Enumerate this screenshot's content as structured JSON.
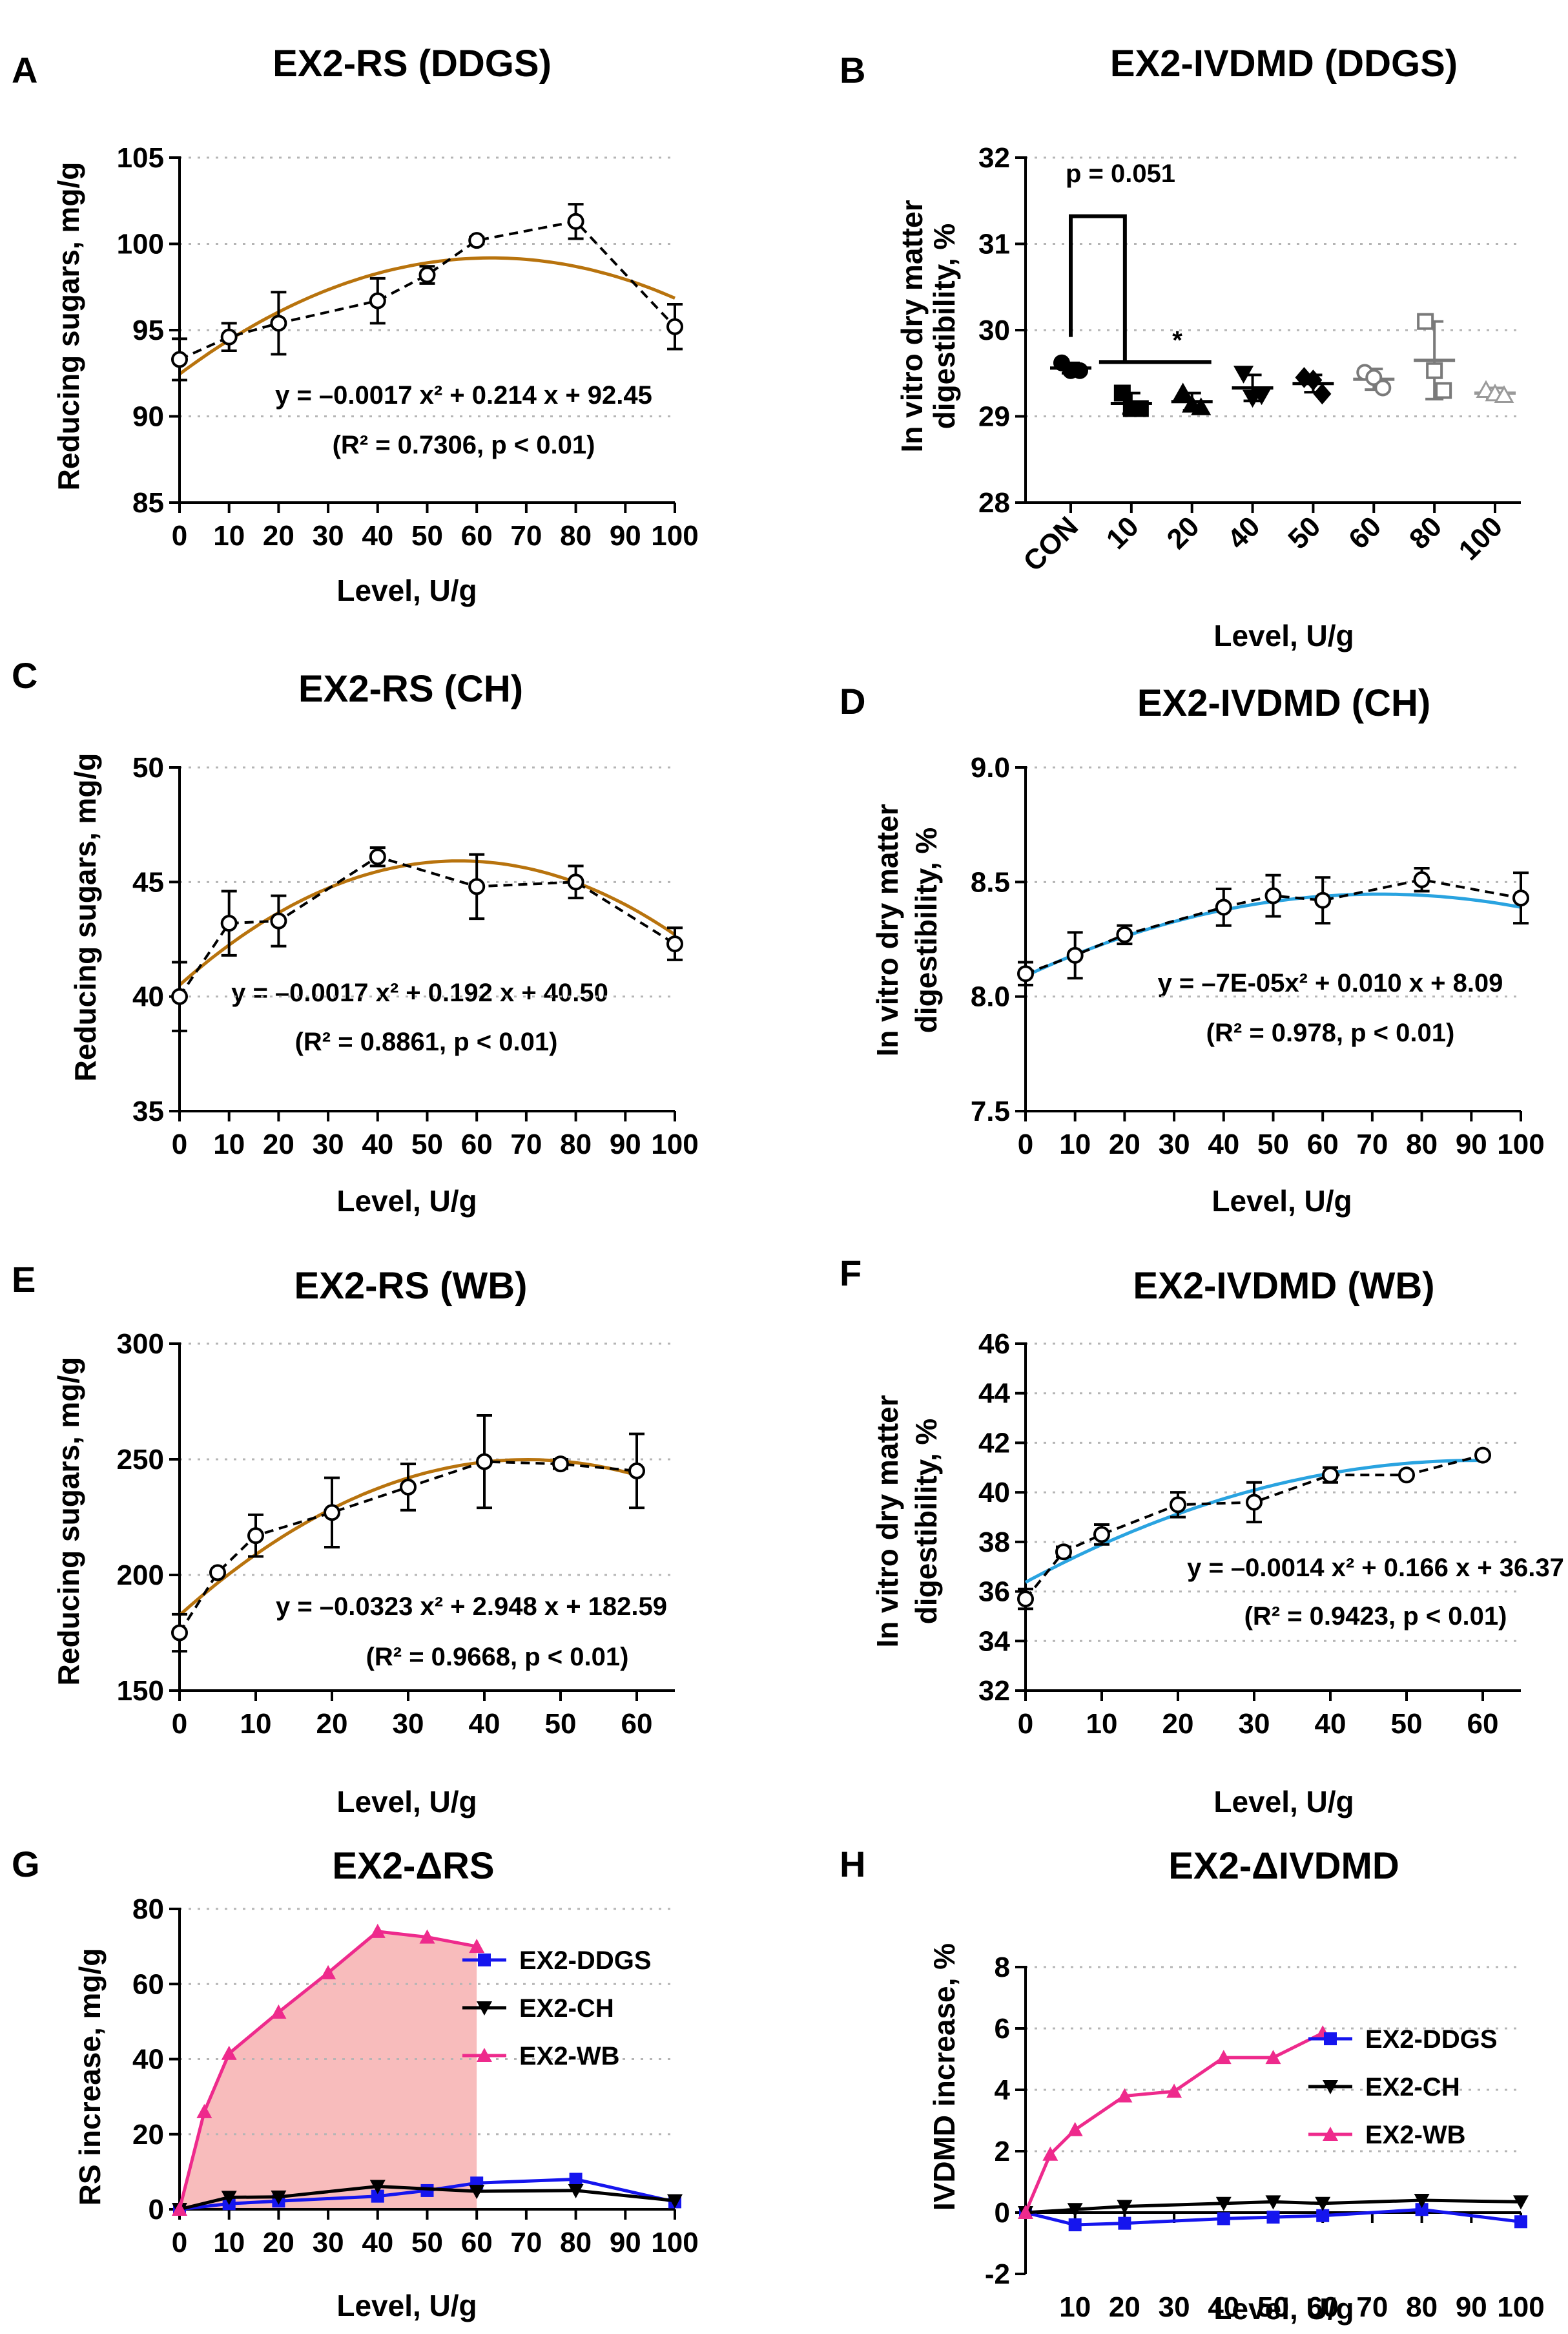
{
  "figure": {
    "panels": {
      "A": {
        "letter": "A",
        "title": "EX2-RS (DDGS)",
        "ylabel": "Reducing sugars, mg/g",
        "xlabel": "Level, U/g",
        "eq1": "y = –0.0017 x² + 0.214 x + 92.45",
        "eq2": "(R² = 0.7306, p < 0.01)"
      },
      "B": {
        "letter": "B",
        "title": "EX2-IVDMD (DDGS)",
        "ylabel1": "In vitro dry matter",
        "ylabel2": "digestibility, %",
        "xlabel": "Level, U/g",
        "pvalue": "p = 0.051",
        "star": "*"
      },
      "C": {
        "letter": "C",
        "title": "EX2-RS (CH)",
        "ylabel": "Reducing sugars, mg/g",
        "xlabel": "Level, U/g",
        "eq1": "y = –0.0017 x² + 0.192 x + 40.50",
        "eq2": "(R² = 0.8861, p < 0.01)"
      },
      "D": {
        "letter": "D",
        "title": "EX2-IVDMD (CH)",
        "ylabel1": "In vitro dry matter",
        "ylabel2": "digestibility, %",
        "xlabel": "Level, U/g",
        "eq1": "y = –7E-05x² + 0.010 x + 8.09",
        "eq2": "(R² = 0.978, p < 0.01)"
      },
      "E": {
        "letter": "E",
        "title": "EX2-RS (WB)",
        "ylabel": "Reducing sugars, mg/g",
        "xlabel": "Level, U/g",
        "eq1": "y = –0.0323 x² + 2.948 x + 182.59",
        "eq2": "(R² = 0.9668, p < 0.01)"
      },
      "F": {
        "letter": "F",
        "title": "EX2-IVDMD (WB)",
        "ylabel1": "In vitro dry matter",
        "ylabel2": "digestibility, %",
        "xlabel": "Level, U/g",
        "eq1": "y = –0.0014 x² + 0.166 x + 36.37",
        "eq2": "(R² = 0.9423, p < 0.01)"
      },
      "G": {
        "letter": "G",
        "title": "EX2-ΔRS",
        "ylabel": "RS increase, mg/g",
        "xlabel": "Level, U/g"
      },
      "H": {
        "letter": "H",
        "title": "EX2-ΔIVDMD",
        "ylabel": "IVDMD increase, %",
        "xlabel": "Level, U/g"
      }
    }
  },
  "colors": {
    "fit_brown": "#b8730d",
    "fit_blue": "#29a3e0",
    "ddgs": "#1515ee",
    "ch": "#000000",
    "wb": "#ee2a8c",
    "shade": "#f8bcbc"
  },
  "chart_data": [
    {
      "panel": "A",
      "type": "line",
      "title": "EX2-RS (DDGS)",
      "xlabel": "Level, U/g",
      "ylabel": "Reducing sugars, mg/g",
      "xlim": [
        0,
        100
      ],
      "ylim": [
        85,
        105
      ],
      "yticks": [
        85,
        90,
        95,
        100,
        105
      ],
      "xticks": [
        0,
        10,
        20,
        30,
        40,
        50,
        60,
        70,
        80,
        90,
        100
      ],
      "xtick_labels": [
        "0",
        "10",
        "20",
        "30",
        "40",
        "50",
        "60",
        "70",
        "80",
        "90",
        "100"
      ],
      "x": [
        0,
        10,
        20,
        40,
        50,
        60,
        80,
        100
      ],
      "y": [
        93.3,
        94.6,
        95.4,
        96.7,
        98.2,
        100.2,
        101.3,
        95.2
      ],
      "err": [
        1.2,
        0.8,
        1.8,
        1.3,
        0.5,
        0.2,
        1.0,
        1.3
      ],
      "fit": {
        "a": -0.0017,
        "b": 0.214,
        "c": 92.45
      }
    },
    {
      "panel": "B",
      "type": "scatter",
      "title": "EX2-IVDMD (DDGS)",
      "xlabel": "Level, U/g",
      "ylabel": "In vitro dry matter digestibility, %",
      "ylim": [
        28,
        32
      ],
      "yticks": [
        28,
        29,
        30,
        31,
        32
      ],
      "categories": [
        "CON",
        "10",
        "20",
        "40",
        "50",
        "60",
        "80",
        "100"
      ],
      "mean": [
        29.56,
        29.15,
        29.17,
        29.33,
        29.38,
        29.43,
        29.65,
        29.27
      ],
      "sd": [
        0.06,
        0.12,
        0.1,
        0.15,
        0.1,
        0.12,
        0.45,
        0.06
      ],
      "points": [
        [
          29.62,
          29.53,
          29.53
        ],
        [
          29.27,
          29.09,
          29.09
        ],
        [
          29.27,
          29.13,
          29.1
        ],
        [
          29.5,
          29.22,
          29.25
        ],
        [
          29.45,
          29.42,
          29.26
        ],
        [
          29.51,
          29.45,
          29.33
        ],
        [
          30.1,
          29.53,
          29.3
        ],
        [
          29.3,
          29.26,
          29.24
        ]
      ],
      "annotations": [
        "p = 0.051",
        "*"
      ]
    },
    {
      "panel": "C",
      "type": "line",
      "title": "EX2-RS (CH)",
      "xlabel": "Level, U/g",
      "ylabel": "Reducing sugars, mg/g",
      "xlim": [
        0,
        100
      ],
      "ylim": [
        35,
        50
      ],
      "yticks": [
        35,
        40,
        45,
        50
      ],
      "xticks": [
        0,
        10,
        20,
        30,
        40,
        50,
        60,
        70,
        80,
        90,
        100
      ],
      "xtick_labels": [
        "0",
        "10",
        "20",
        "30",
        "40",
        "50",
        "60",
        "70",
        "80",
        "90",
        "100"
      ],
      "x": [
        0,
        10,
        20,
        40,
        60,
        80,
        100
      ],
      "y": [
        40.0,
        43.2,
        43.3,
        46.1,
        44.8,
        45.0,
        42.3
      ],
      "err": [
        1.5,
        1.4,
        1.1,
        0.4,
        1.4,
        0.7,
        0.7
      ],
      "fit": {
        "a": -0.0017,
        "b": 0.192,
        "c": 40.5
      }
    },
    {
      "panel": "D",
      "type": "line",
      "title": "EX2-IVDMD (CH)",
      "xlabel": "Level, U/g",
      "ylabel": "In vitro dry matter digestibility, %",
      "xlim": [
        0,
        100
      ],
      "ylim": [
        7.5,
        9.0
      ],
      "yticks": [
        7.5,
        8.0,
        8.5,
        9.0
      ],
      "ytick_labels": [
        "7.5",
        "8.0",
        "8.5",
        "9.0"
      ],
      "xticks": [
        0,
        10,
        20,
        30,
        40,
        50,
        60,
        70,
        80,
        90,
        100
      ],
      "xtick_labels": [
        "0",
        "10",
        "20",
        "30",
        "40",
        "50",
        "60",
        "70",
        "80",
        "90",
        "100"
      ],
      "x": [
        0,
        10,
        20,
        40,
        50,
        60,
        80,
        100
      ],
      "y": [
        8.1,
        8.18,
        8.27,
        8.39,
        8.44,
        8.42,
        8.51,
        8.43
      ],
      "err": [
        0.05,
        0.1,
        0.04,
        0.08,
        0.09,
        0.1,
        0.05,
        0.11
      ],
      "fit": {
        "a": -7e-05,
        "b": 0.01,
        "c": 8.09
      }
    },
    {
      "panel": "E",
      "type": "line",
      "title": "EX2-RS (WB)",
      "xlabel": "Level, U/g",
      "ylabel": "Reducing sugars, mg/g",
      "xlim": [
        0,
        65
      ],
      "ylim": [
        150,
        300
      ],
      "yticks": [
        150,
        200,
        250,
        300
      ],
      "xticks": [
        0,
        10,
        20,
        30,
        40,
        50,
        60
      ],
      "xtick_labels": [
        "0",
        "10",
        "20",
        "30",
        "40",
        "50",
        "60"
      ],
      "x": [
        0,
        5,
        10,
        20,
        30,
        40,
        50,
        60
      ],
      "y": [
        175,
        201,
        217,
        227,
        238,
        249,
        248,
        245
      ],
      "err": [
        8,
        0,
        9,
        15,
        10,
        20,
        2,
        16
      ],
      "fit": {
        "a": -0.0323,
        "b": 2.948,
        "c": 182.59
      }
    },
    {
      "panel": "F",
      "type": "line",
      "title": "EX2-IVDMD (WB)",
      "xlabel": "Level, U/g",
      "ylabel": "In vitro dry matter digestibility, %",
      "xlim": [
        0,
        65
      ],
      "ylim": [
        32,
        46
      ],
      "yticks": [
        32,
        34,
        36,
        38,
        40,
        42,
        44,
        46
      ],
      "xticks": [
        0,
        10,
        20,
        30,
        40,
        50,
        60
      ],
      "xtick_labels": [
        "0",
        "10",
        "20",
        "30",
        "40",
        "50",
        "60"
      ],
      "x": [
        0,
        5,
        10,
        20,
        30,
        40,
        50,
        60
      ],
      "y": [
        35.7,
        37.6,
        38.3,
        39.5,
        39.6,
        40.7,
        40.7,
        41.5
      ],
      "err": [
        0.4,
        0.2,
        0.4,
        0.5,
        0.8,
        0.3,
        0.1,
        0.1
      ],
      "fit": {
        "a": -0.0014,
        "b": 0.166,
        "c": 36.37
      }
    },
    {
      "panel": "G",
      "type": "line",
      "title": "EX2-ΔRS",
      "xlabel": "Level, U/g",
      "ylabel": "RS increase, mg/g",
      "xlim": [
        0,
        100
      ],
      "ylim": [
        0,
        80
      ],
      "yticks": [
        0,
        20,
        40,
        60,
        80
      ],
      "xticks": [
        0,
        10,
        20,
        30,
        40,
        50,
        60,
        70,
        80,
        90,
        100
      ],
      "xtick_labels": [
        "0",
        "10",
        "20",
        "30",
        "40",
        "50",
        "60",
        "70",
        "80",
        "90",
        "100"
      ],
      "legend": "right",
      "series": [
        {
          "name": "EX2-DDGS",
          "x": [
            0,
            10,
            20,
            40,
            50,
            60,
            80,
            100
          ],
          "values": [
            0,
            1.5,
            2.2,
            3.5,
            5.0,
            7.0,
            8.0,
            2.0
          ]
        },
        {
          "name": "EX2-CH",
          "x": [
            0,
            10,
            20,
            40,
            60,
            80,
            100
          ],
          "values": [
            0,
            3.2,
            3.3,
            6.1,
            4.8,
            5.0,
            2.3
          ]
        },
        {
          "name": "EX2-WB",
          "x": [
            0,
            5,
            10,
            20,
            30,
            40,
            50,
            60
          ],
          "values": [
            0,
            26,
            41.5,
            52.5,
            63,
            74,
            72.5,
            70
          ]
        }
      ]
    },
    {
      "panel": "H",
      "type": "line",
      "title": "EX2-ΔIVDMD",
      "xlabel": "Level, U/g",
      "ylabel": "IVDMD increase, %",
      "xlim": [
        0,
        100
      ],
      "ylim": [
        -2,
        8
      ],
      "yticks": [
        -2,
        0,
        2,
        4,
        6,
        8
      ],
      "xticks": [
        0,
        10,
        20,
        30,
        40,
        50,
        60,
        70,
        80,
        90,
        100
      ],
      "xtick_labels": [
        "",
        "10",
        "20",
        "30",
        "40",
        "50",
        "60",
        "70",
        "80",
        "90",
        "100"
      ],
      "legend": "right",
      "series": [
        {
          "name": "EX2-DDGS",
          "x": [
            0,
            10,
            20,
            40,
            50,
            60,
            80,
            100
          ],
          "values": [
            0,
            -0.4,
            -0.35,
            -0.2,
            -0.15,
            -0.1,
            0.1,
            -0.3
          ]
        },
        {
          "name": "EX2-CH",
          "x": [
            0,
            10,
            20,
            40,
            50,
            60,
            80,
            100
          ],
          "values": [
            0,
            0.1,
            0.2,
            0.3,
            0.35,
            0.3,
            0.4,
            0.35
          ]
        },
        {
          "name": "EX2-WB",
          "x": [
            0,
            5,
            10,
            20,
            30,
            40,
            50,
            60
          ],
          "values": [
            0,
            1.9,
            2.7,
            3.8,
            3.95,
            5.05,
            5.05,
            5.85
          ]
        }
      ]
    }
  ]
}
